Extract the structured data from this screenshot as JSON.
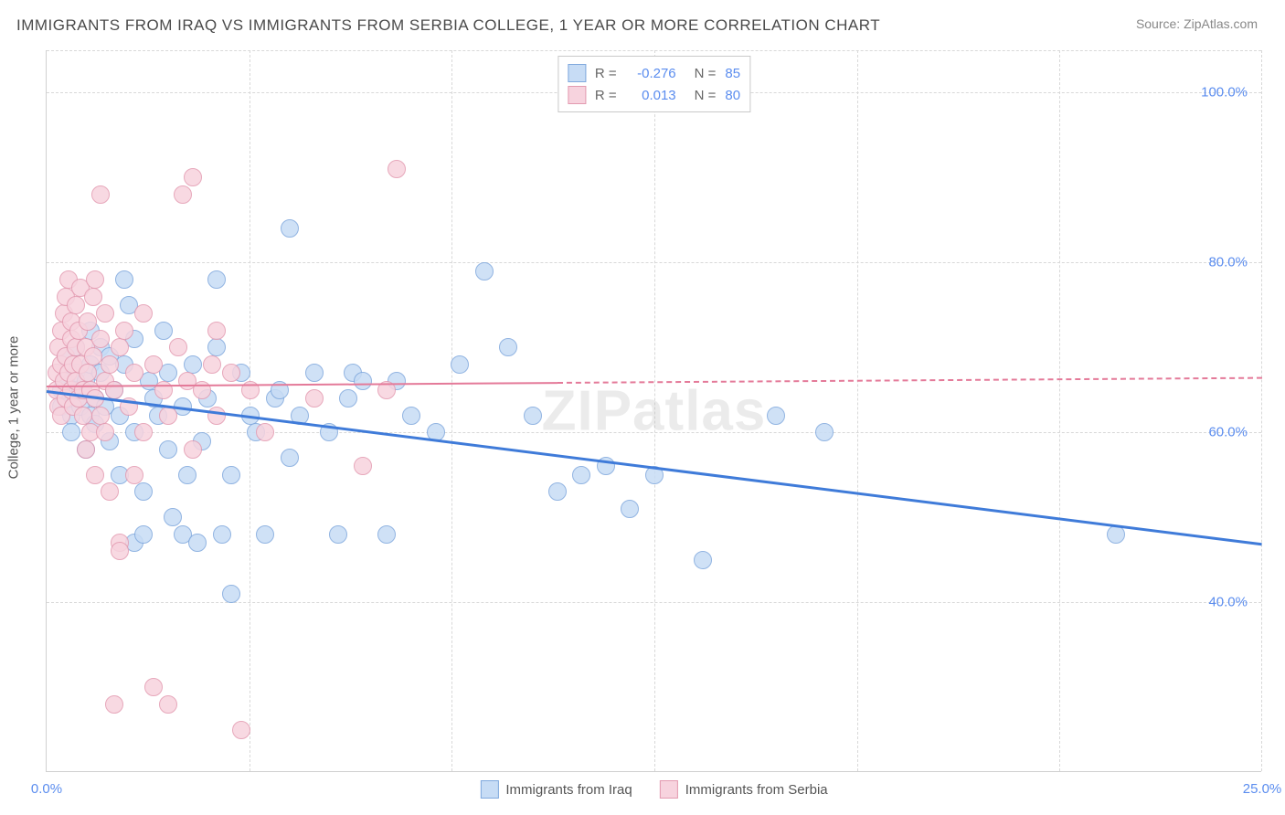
{
  "title": "IMMIGRANTS FROM IRAQ VS IMMIGRANTS FROM SERBIA COLLEGE, 1 YEAR OR MORE CORRELATION CHART",
  "source": "Source: ZipAtlas.com",
  "watermark": "ZIPatlas",
  "ylabel": "College, 1 year or more",
  "chart": {
    "type": "scatter",
    "x_min": 0.0,
    "x_max": 25.0,
    "y_min": 20.0,
    "y_max": 105.0,
    "x_ticks": [
      0.0,
      25.0
    ],
    "x_tick_labels": [
      "0.0%",
      "25.0%"
    ],
    "y_ticks": [
      40.0,
      60.0,
      80.0,
      100.0
    ],
    "y_tick_labels": [
      "40.0%",
      "60.0%",
      "80.0%",
      "100.0%"
    ],
    "x_gridlines_minor": [
      4.17,
      8.33,
      12.5,
      16.67,
      20.83
    ],
    "background_color": "#ffffff",
    "grid_color": "#d8d8d8",
    "axis_color": "#d0d0d0",
    "marker_radius": 10,
    "marker_stroke_width": 1,
    "series": [
      {
        "name": "Immigrants from Iraq",
        "fill": "#c7dcf5",
        "stroke": "#7fa8dd",
        "trend_color": "#3f7bd9",
        "trend_width": 3,
        "trend_solid_to_x": 25.0,
        "R": "-0.276",
        "N": "85",
        "trend": {
          "x1": 0.0,
          "y1": 65.0,
          "x2": 25.0,
          "y2": 47.0
        },
        "points": [
          [
            0.3,
            65
          ],
          [
            0.3,
            63
          ],
          [
            0.4,
            66
          ],
          [
            0.4,
            69
          ],
          [
            0.5,
            62
          ],
          [
            0.5,
            60
          ],
          [
            0.6,
            64
          ],
          [
            0.6,
            70
          ],
          [
            0.6,
            67
          ],
          [
            0.7,
            63
          ],
          [
            0.7,
            65
          ],
          [
            0.8,
            58
          ],
          [
            0.8,
            66
          ],
          [
            0.9,
            62
          ],
          [
            0.9,
            68
          ],
          [
            0.9,
            72
          ],
          [
            1.0,
            64
          ],
          [
            1.0,
            61
          ],
          [
            1.1,
            70
          ],
          [
            1.1,
            67
          ],
          [
            1.2,
            63
          ],
          [
            1.3,
            69
          ],
          [
            1.3,
            59
          ],
          [
            1.4,
            65
          ],
          [
            1.5,
            55
          ],
          [
            1.5,
            62
          ],
          [
            1.6,
            78
          ],
          [
            1.6,
            68
          ],
          [
            1.7,
            75
          ],
          [
            1.8,
            60
          ],
          [
            1.8,
            47
          ],
          [
            1.8,
            71
          ],
          [
            2.0,
            53
          ],
          [
            2.0,
            48
          ],
          [
            2.1,
            66
          ],
          [
            2.2,
            64
          ],
          [
            2.3,
            62
          ],
          [
            2.4,
            72
          ],
          [
            2.5,
            58
          ],
          [
            2.5,
            67
          ],
          [
            2.6,
            50
          ],
          [
            2.8,
            48
          ],
          [
            2.8,
            63
          ],
          [
            2.9,
            55
          ],
          [
            3.0,
            68
          ],
          [
            3.1,
            47
          ],
          [
            3.2,
            59
          ],
          [
            3.3,
            64
          ],
          [
            3.5,
            78
          ],
          [
            3.5,
            70
          ],
          [
            3.6,
            48
          ],
          [
            3.8,
            41
          ],
          [
            3.8,
            55
          ],
          [
            4.0,
            67
          ],
          [
            4.2,
            62
          ],
          [
            4.3,
            60
          ],
          [
            4.5,
            48
          ],
          [
            4.7,
            64
          ],
          [
            4.8,
            65
          ],
          [
            5.0,
            57
          ],
          [
            5.0,
            84
          ],
          [
            5.2,
            62
          ],
          [
            5.5,
            67
          ],
          [
            5.8,
            60
          ],
          [
            6.0,
            48
          ],
          [
            6.2,
            64
          ],
          [
            6.3,
            67
          ],
          [
            6.5,
            66
          ],
          [
            7.0,
            48
          ],
          [
            7.2,
            66
          ],
          [
            7.5,
            62
          ],
          [
            8.0,
            60
          ],
          [
            8.5,
            68
          ],
          [
            9.0,
            79
          ],
          [
            9.5,
            70
          ],
          [
            10.0,
            62
          ],
          [
            10.5,
            53
          ],
          [
            11.0,
            55
          ],
          [
            11.5,
            56
          ],
          [
            12.0,
            51
          ],
          [
            12.5,
            55
          ],
          [
            13.5,
            45
          ],
          [
            15.0,
            62
          ],
          [
            16.0,
            60
          ],
          [
            22.0,
            48
          ]
        ]
      },
      {
        "name": "Immigrants from Serbia",
        "fill": "#f7d3de",
        "stroke": "#e39ab0",
        "trend_color": "#e47a99",
        "trend_width": 2,
        "trend_solid_to_x": 10.5,
        "R": "0.013",
        "N": "80",
        "trend": {
          "x1": 0.0,
          "y1": 65.5,
          "x2": 25.0,
          "y2": 66.5
        },
        "points": [
          [
            0.2,
            65
          ],
          [
            0.2,
            67
          ],
          [
            0.25,
            70
          ],
          [
            0.25,
            63
          ],
          [
            0.3,
            62
          ],
          [
            0.3,
            72
          ],
          [
            0.3,
            68
          ],
          [
            0.35,
            74
          ],
          [
            0.35,
            66
          ],
          [
            0.4,
            76
          ],
          [
            0.4,
            64
          ],
          [
            0.4,
            69
          ],
          [
            0.45,
            67
          ],
          [
            0.45,
            78
          ],
          [
            0.5,
            73
          ],
          [
            0.5,
            65
          ],
          [
            0.5,
            71
          ],
          [
            0.55,
            68
          ],
          [
            0.55,
            63
          ],
          [
            0.6,
            70
          ],
          [
            0.6,
            75
          ],
          [
            0.6,
            66
          ],
          [
            0.65,
            64
          ],
          [
            0.65,
            72
          ],
          [
            0.7,
            68
          ],
          [
            0.7,
            77
          ],
          [
            0.75,
            65
          ],
          [
            0.75,
            62
          ],
          [
            0.8,
            70
          ],
          [
            0.8,
            58
          ],
          [
            0.85,
            73
          ],
          [
            0.85,
            67
          ],
          [
            0.9,
            65
          ],
          [
            0.9,
            60
          ],
          [
            0.95,
            76
          ],
          [
            0.95,
            69
          ],
          [
            1.0,
            78
          ],
          [
            1.0,
            55
          ],
          [
            1.0,
            64
          ],
          [
            1.1,
            88
          ],
          [
            1.1,
            62
          ],
          [
            1.1,
            71
          ],
          [
            1.2,
            66
          ],
          [
            1.2,
            74
          ],
          [
            1.2,
            60
          ],
          [
            1.3,
            68
          ],
          [
            1.3,
            53
          ],
          [
            1.4,
            28
          ],
          [
            1.4,
            65
          ],
          [
            1.5,
            47
          ],
          [
            1.5,
            70
          ],
          [
            1.5,
            46
          ],
          [
            1.6,
            72
          ],
          [
            1.7,
            63
          ],
          [
            1.8,
            67
          ],
          [
            1.8,
            55
          ],
          [
            2.0,
            74
          ],
          [
            2.0,
            60
          ],
          [
            2.2,
            30
          ],
          [
            2.2,
            68
          ],
          [
            2.4,
            65
          ],
          [
            2.5,
            62
          ],
          [
            2.5,
            28
          ],
          [
            2.7,
            70
          ],
          [
            2.8,
            88
          ],
          [
            2.9,
            66
          ],
          [
            3.0,
            58
          ],
          [
            3.0,
            90
          ],
          [
            3.2,
            65
          ],
          [
            3.4,
            68
          ],
          [
            3.5,
            72
          ],
          [
            3.5,
            62
          ],
          [
            3.8,
            67
          ],
          [
            4.0,
            25
          ],
          [
            4.2,
            65
          ],
          [
            4.5,
            60
          ],
          [
            5.5,
            64
          ],
          [
            6.5,
            56
          ],
          [
            7.0,
            65
          ],
          [
            7.2,
            91
          ]
        ]
      }
    ]
  },
  "legend_bottom": [
    {
      "label": "Immigrants from Iraq",
      "fill": "#c7dcf5",
      "stroke": "#7fa8dd"
    },
    {
      "label": "Immigrants from Serbia",
      "fill": "#f7d3de",
      "stroke": "#e39ab0"
    }
  ],
  "legend_top_labels": {
    "R": "R =",
    "N": "N ="
  }
}
